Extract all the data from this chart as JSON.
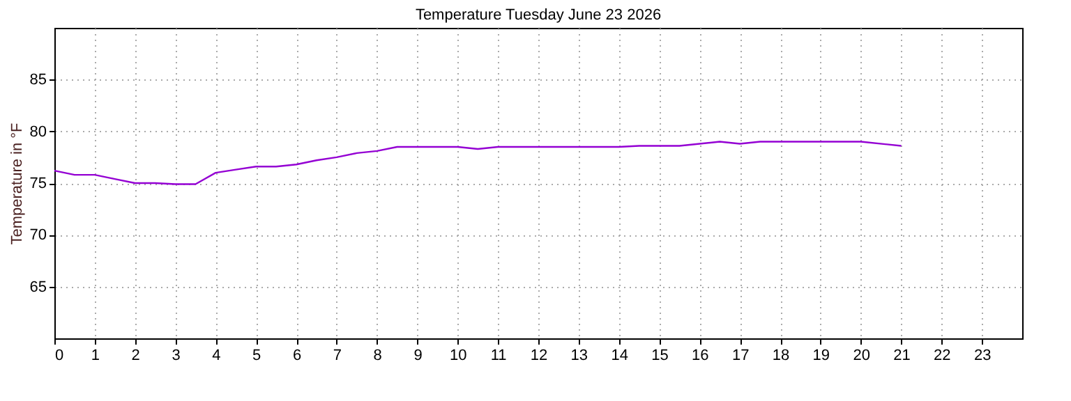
{
  "chart_data": {
    "type": "line",
    "title": "Temperature Tuesday June 23 2026",
    "ylabel": "Temperature in °F",
    "x": [
      0,
      0.5,
      1,
      1.5,
      2,
      2.5,
      3,
      3.5,
      4,
      4.5,
      5,
      5.5,
      6,
      6.5,
      7,
      7.5,
      8,
      8.5,
      9,
      10,
      10.5,
      11,
      14,
      14.5,
      15.5,
      16.5,
      17,
      17.5,
      20,
      21
    ],
    "series": [
      {
        "color": "#9400d3",
        "values": [
          76.2,
          75.8,
          75.8,
          75.4,
          75.0,
          75.0,
          74.9,
          74.9,
          76.0,
          76.3,
          76.6,
          76.6,
          76.8,
          77.2,
          77.5,
          77.9,
          78.1,
          78.5,
          78.5,
          78.5,
          78.3,
          78.5,
          78.5,
          78.6,
          78.6,
          79.0,
          78.8,
          79.0,
          79.0,
          78.6
        ]
      }
    ],
    "xlim": [
      0,
      24
    ],
    "xticks": [
      0,
      1,
      2,
      3,
      4,
      5,
      6,
      7,
      8,
      9,
      10,
      11,
      12,
      13,
      14,
      15,
      16,
      17,
      18,
      19,
      20,
      21,
      22,
      23
    ],
    "ylim": [
      60,
      90
    ],
    "yticks": [
      65,
      70,
      75,
      80,
      85
    ],
    "grid": true,
    "legend": false,
    "marker": "none",
    "line_style": "solid"
  }
}
